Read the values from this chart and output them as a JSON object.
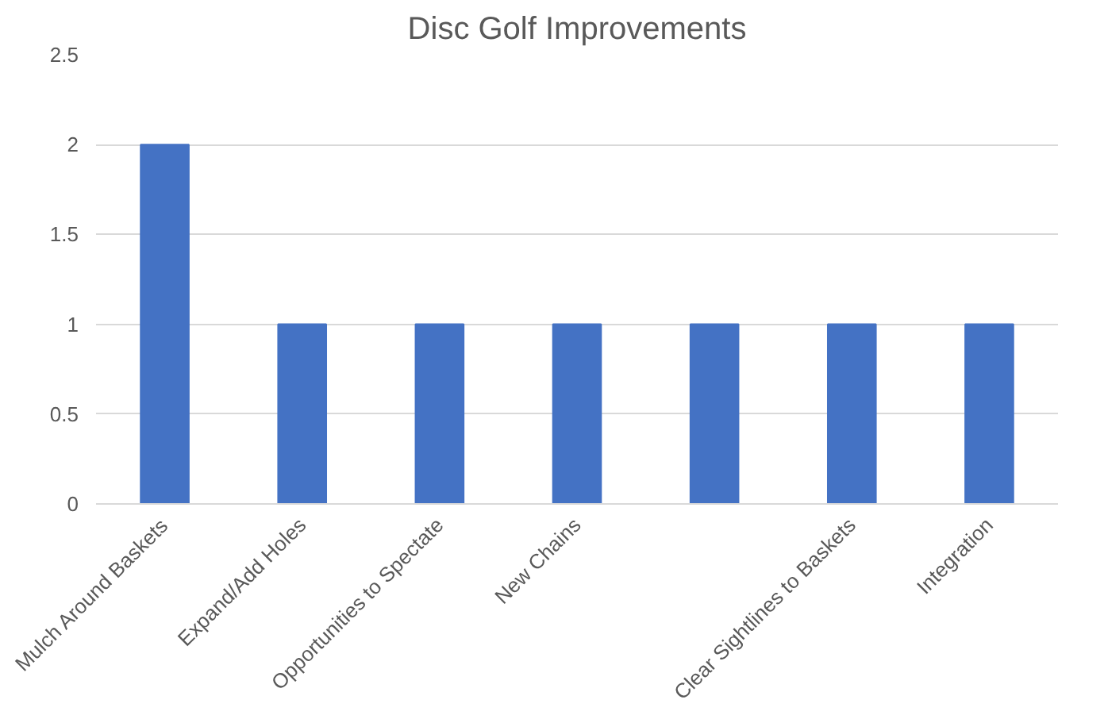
{
  "chart_data": {
    "type": "bar",
    "title": "Disc Golf Improvements",
    "categories": [
      "Mulch Around Baskets",
      "Expand/Add Holes",
      "Opportunities to Spectate",
      "New Chains",
      null,
      "Clear Sightlines to Baskets",
      "Integration"
    ],
    "values": [
      2,
      1,
      1,
      1,
      1,
      1,
      1
    ],
    "color": "#4472c4",
    "ylim": [
      0,
      2.5
    ],
    "yticks": [
      0,
      0.5,
      1,
      1.5,
      2,
      2.5
    ],
    "grid": "y"
  }
}
